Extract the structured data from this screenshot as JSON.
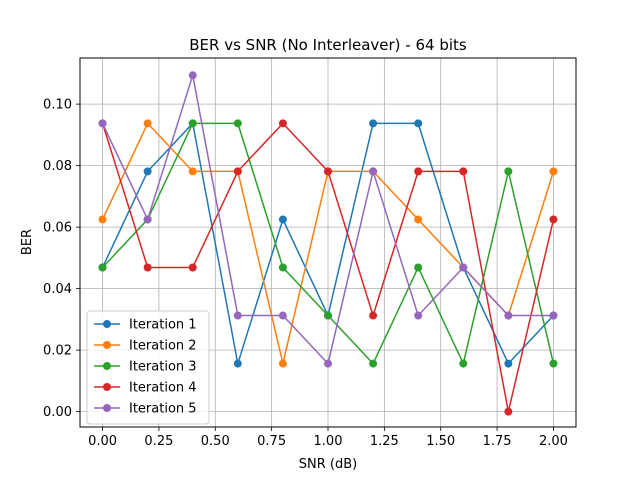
{
  "chart_data": {
    "type": "line",
    "title": "BER vs SNR (No Interleaver) - 64 bits",
    "xlabel": "SNR (dB)",
    "ylabel": "BER",
    "x": [
      0.0,
      0.2,
      0.4,
      0.6,
      0.8,
      1.0,
      1.2,
      1.4,
      1.6,
      1.8,
      2.0
    ],
    "xlim": [
      -0.1,
      2.1
    ],
    "ylim": [
      -0.005,
      0.115
    ],
    "xticks": [
      "0.00",
      "0.25",
      "0.50",
      "0.75",
      "1.00",
      "1.25",
      "1.50",
      "1.75",
      "2.00"
    ],
    "xtick_values": [
      0.0,
      0.25,
      0.5,
      0.75,
      1.0,
      1.25,
      1.5,
      1.75,
      2.0
    ],
    "yticks": [
      "0.00",
      "0.02",
      "0.04",
      "0.06",
      "0.08",
      "0.10"
    ],
    "ytick_values": [
      0.0,
      0.02,
      0.04,
      0.06,
      0.08,
      0.1
    ],
    "grid": true,
    "legend_position": "lower-left",
    "series": [
      {
        "name": "Iteration 1",
        "color": "#1f77b4",
        "values": [
          0.046875,
          0.078125,
          0.09375,
          0.015625,
          0.0625,
          0.03125,
          0.09375,
          0.09375,
          0.046875,
          0.015625,
          0.03125
        ]
      },
      {
        "name": "Iteration 2",
        "color": "#ff7f0e",
        "values": [
          0.0625,
          0.09375,
          0.078125,
          0.078125,
          0.015625,
          0.078125,
          0.078125,
          0.0625,
          0.046875,
          0.03125,
          0.078125
        ]
      },
      {
        "name": "Iteration 3",
        "color": "#2ca02c",
        "values": [
          0.046875,
          0.0625,
          0.09375,
          0.09375,
          0.046875,
          0.03125,
          0.015625,
          0.046875,
          0.015625,
          0.078125,
          0.015625
        ]
      },
      {
        "name": "Iteration 4",
        "color": "#d62728",
        "values": [
          0.09375,
          0.046875,
          0.046875,
          0.078125,
          0.09375,
          0.078125,
          0.03125,
          0.078125,
          0.078125,
          0.0,
          0.0625
        ]
      },
      {
        "name": "Iteration 5",
        "color": "#9467bd",
        "values": [
          0.09375,
          0.0625,
          0.109375,
          0.03125,
          0.03125,
          0.015625,
          0.078125,
          0.03125,
          0.046875,
          0.03125,
          0.03125
        ]
      }
    ]
  }
}
